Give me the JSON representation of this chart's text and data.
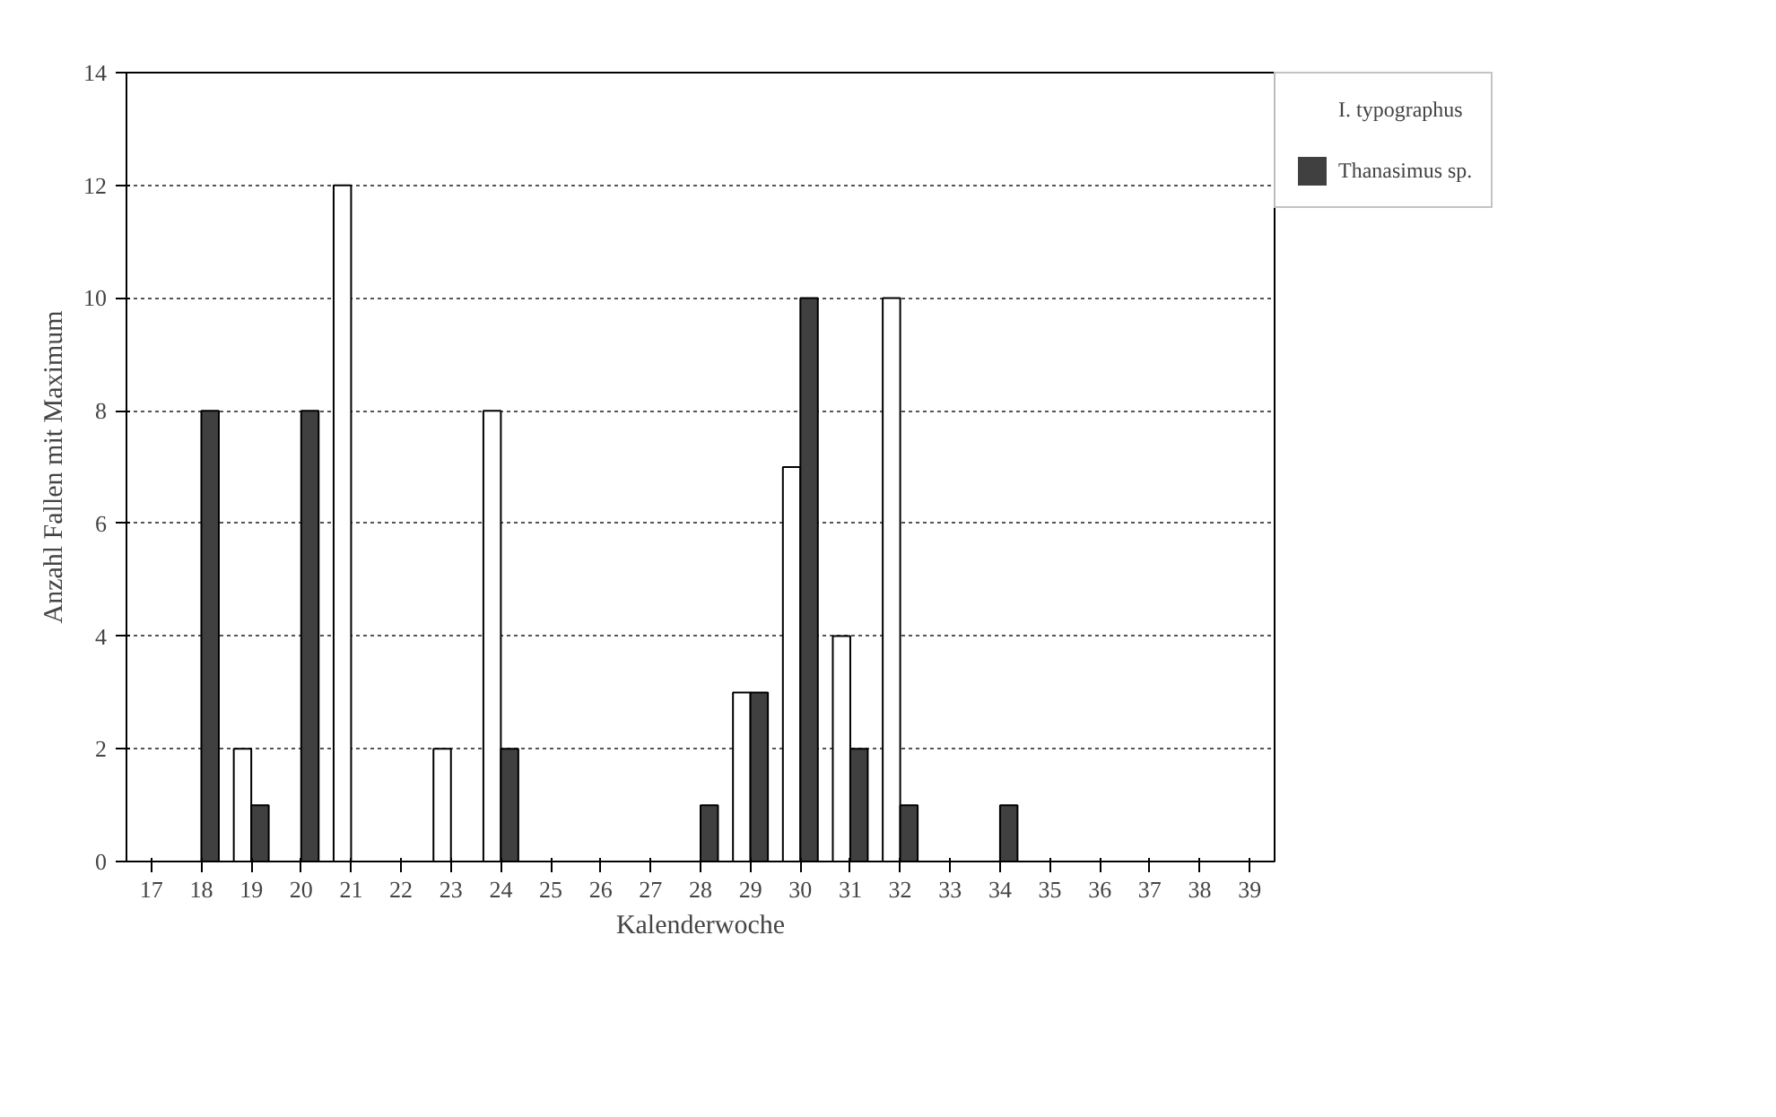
{
  "chart_data": {
    "type": "bar",
    "xlabel": "Kalenderwoche",
    "ylabel": "Anzahl Fallen mit Maximum",
    "categories": [
      "17",
      "18",
      "19",
      "20",
      "21",
      "22",
      "23",
      "24",
      "25",
      "26",
      "27",
      "28",
      "29",
      "30",
      "31",
      "32",
      "33",
      "34",
      "35",
      "36",
      "37",
      "38",
      "39"
    ],
    "series": [
      {
        "name": "I. typographus",
        "color": "#ffffff",
        "values": [
          0,
          0,
          2,
          0,
          12,
          0,
          2,
          8,
          0,
          0,
          0,
          0,
          3,
          7,
          4,
          10,
          0,
          0,
          0,
          0,
          0,
          0,
          0
        ]
      },
      {
        "name": "Thanasimus sp.",
        "color": "#404040",
        "values": [
          0,
          8,
          1,
          8,
          0,
          0,
          0,
          2,
          0,
          0,
          0,
          1,
          3,
          10,
          2,
          1,
          0,
          1,
          0,
          0,
          0,
          0,
          0
        ]
      }
    ],
    "ylim": [
      0,
      14
    ],
    "yticks": [
      0,
      2,
      4,
      6,
      8,
      10,
      12,
      14
    ],
    "grid": "y",
    "legend": "right"
  }
}
